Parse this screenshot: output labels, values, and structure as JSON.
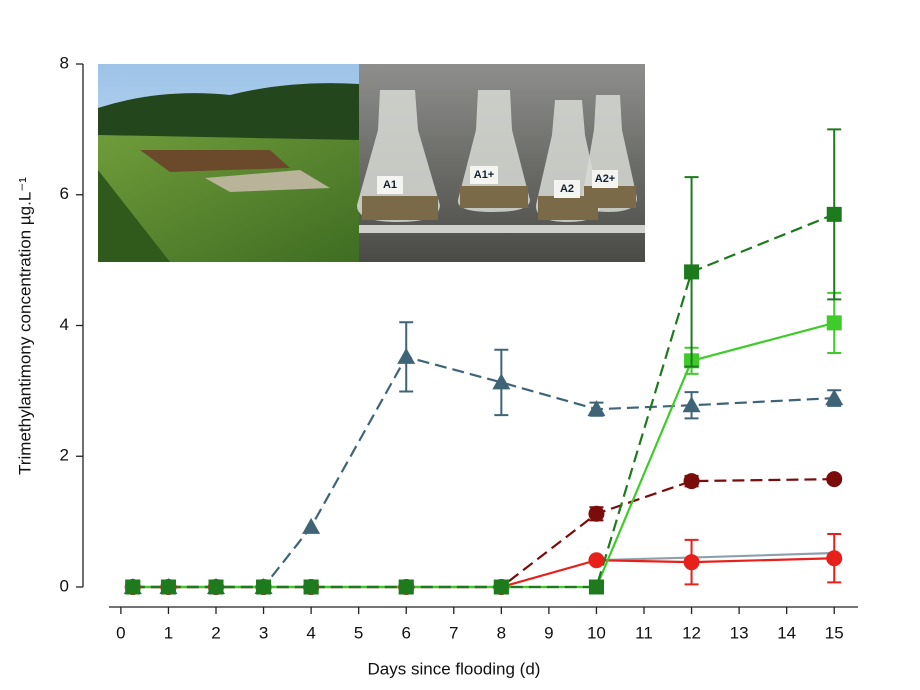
{
  "chart_data": {
    "type": "line",
    "xlabel": "Days since flooding (d)",
    "ylabel": "Trimethylantimony concentration µg.L⁻¹",
    "x": [
      0.25,
      1,
      2,
      3,
      4,
      6,
      8,
      10,
      12,
      15
    ],
    "xlim": [
      -0.25,
      15.5
    ],
    "xticks": [
      0,
      1,
      2,
      3,
      4,
      5,
      6,
      7,
      8,
      9,
      10,
      11,
      12,
      13,
      14,
      15
    ],
    "ylim": [
      0,
      8
    ],
    "yticks": [
      0,
      2,
      4,
      6,
      8
    ],
    "series": [
      {
        "color": "#8fa0ad",
        "dash": false,
        "marker": "none",
        "values": [
          null,
          null,
          null,
          null,
          null,
          null,
          null,
          0.41,
          0.45,
          0.52
        ],
        "errors": [
          null,
          null,
          null,
          null,
          null,
          null,
          null,
          null,
          null,
          null
        ]
      },
      {
        "color": "#3f6478",
        "dash": true,
        "marker": "triangle",
        "values": [
          0,
          0,
          0,
          0,
          0.92,
          3.52,
          3.13,
          2.72,
          2.78,
          2.89
        ],
        "errors": [
          null,
          null,
          null,
          null,
          null,
          0.53,
          0.5,
          0.1,
          0.2,
          0.12
        ]
      },
      {
        "color": "#7a0c0c",
        "dash": true,
        "marker": "circle",
        "values": [
          0,
          0,
          0,
          0,
          0,
          0,
          0,
          1.12,
          1.62,
          1.65
        ],
        "errors": [
          null,
          null,
          null,
          null,
          null,
          null,
          null,
          0.1,
          0.08,
          0.05
        ]
      },
      {
        "color": "#e8201c",
        "dash": false,
        "marker": "circle",
        "values": [
          0,
          0,
          0,
          0,
          0,
          0,
          0,
          0.41,
          0.38,
          0.44
        ],
        "errors": [
          null,
          null,
          null,
          null,
          null,
          null,
          null,
          null,
          0.34,
          0.37
        ]
      },
      {
        "color": "#3fcc2a",
        "dash": false,
        "marker": "square",
        "values": [
          0,
          0,
          0,
          0,
          0,
          0,
          0,
          0,
          3.46,
          4.04
        ],
        "errors": [
          null,
          null,
          null,
          null,
          null,
          null,
          null,
          null,
          0.2,
          0.46
        ]
      },
      {
        "color": "#1d7a1d",
        "dash": true,
        "marker": "square",
        "values": [
          0,
          0,
          0,
          0,
          0,
          0,
          0,
          0,
          4.82,
          5.7
        ],
        "errors": [
          null,
          null,
          null,
          null,
          null,
          null,
          null,
          null,
          1.45,
          1.3
        ]
      }
    ],
    "photo_labels": [
      "A1",
      "A1+",
      "A2",
      "A2+"
    ]
  }
}
